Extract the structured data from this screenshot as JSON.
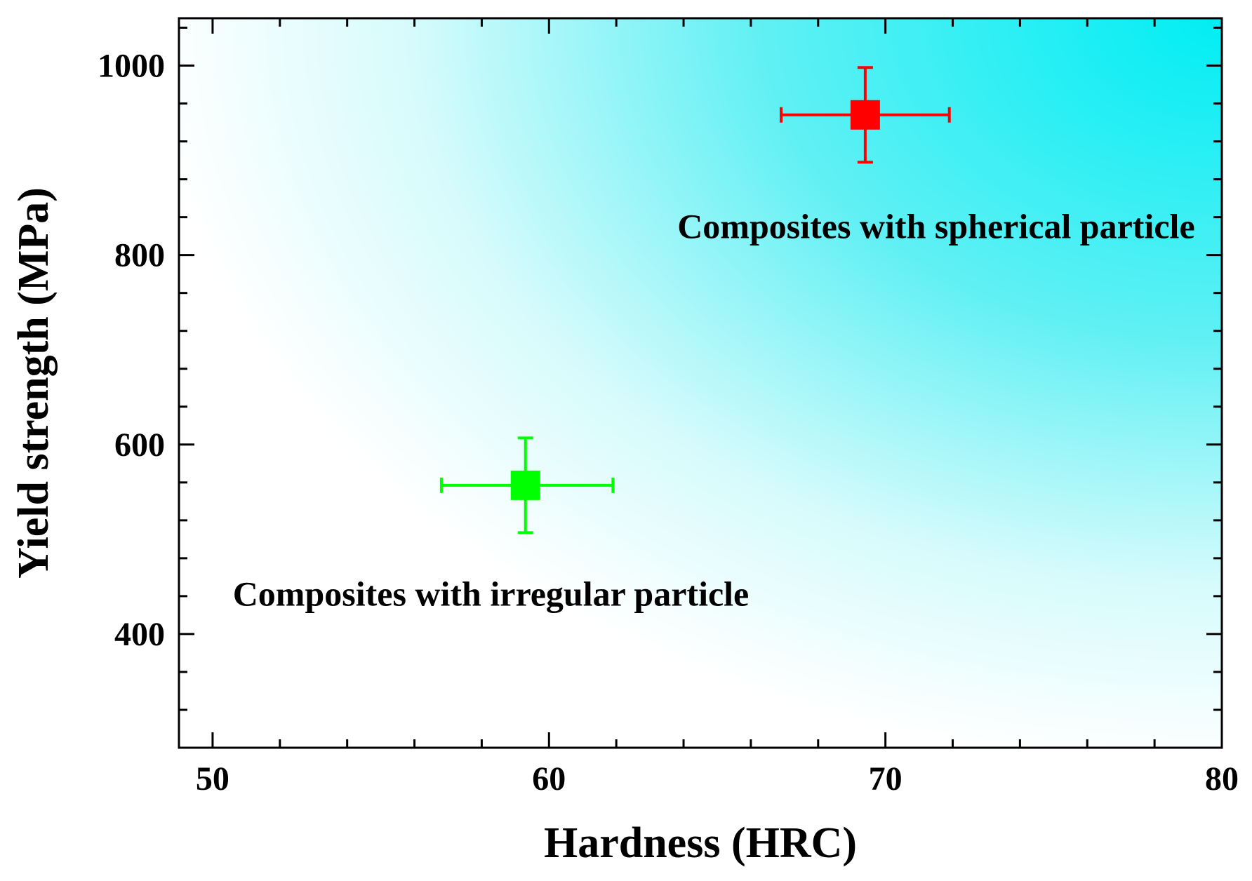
{
  "chart_data": {
    "type": "scatter",
    "xlabel": "Hardness (HRC)",
    "ylabel": "Yield strength (MPa)",
    "xlim": [
      49,
      80
    ],
    "ylim": [
      280,
      1050
    ],
    "xticks": [
      50,
      60,
      70,
      80
    ],
    "xtick_labels": [
      "50",
      "60",
      "70",
      "80"
    ],
    "yticks": [
      400,
      600,
      800,
      1000
    ],
    "ytick_labels": [
      "400",
      "600",
      "800",
      "1000"
    ],
    "x_minor_step": 2,
    "y_minor_step": 40,
    "grid": false,
    "background": "gradient: white on the left to cyan toward the upper right",
    "points": [
      {
        "x": 59.3,
        "y": 557,
        "x_err": [
          56.8,
          61.9
        ],
        "y_err": [
          507,
          607
        ],
        "color": "#00ff00",
        "marker": "square"
      },
      {
        "x": 69.4,
        "y": 948,
        "x_err": [
          66.9,
          71.9
        ],
        "y_err": [
          898,
          998
        ],
        "color": "#ff0000",
        "marker": "square"
      }
    ],
    "annotations": [
      {
        "text": "Composites with spherical particle",
        "x": 79.2,
        "y": 818,
        "anchor": "end"
      },
      {
        "text": "Composites with irregular particle",
        "x": 50.6,
        "y": 430,
        "anchor": "start"
      }
    ]
  }
}
